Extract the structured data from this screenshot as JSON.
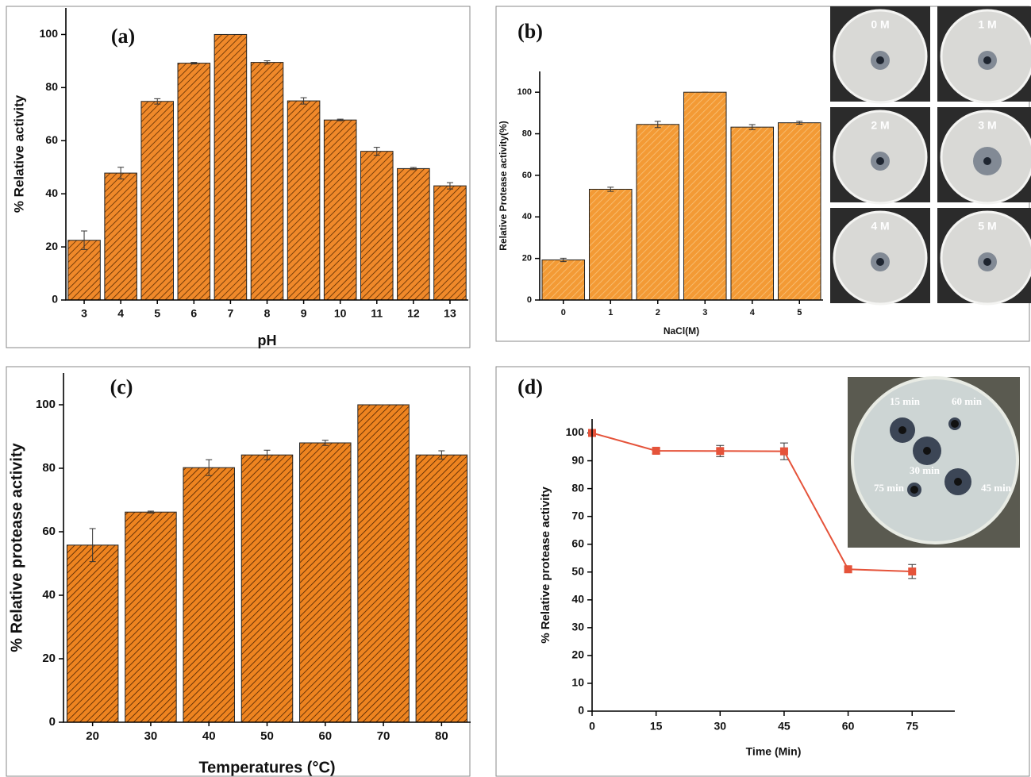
{
  "chart_data": [
    {
      "type": "bar",
      "annotation": "(a)",
      "x_label": "pH",
      "y_label": "% Relative activity",
      "categories": [
        "3",
        "4",
        "5",
        "6",
        "7",
        "8",
        "9",
        "10",
        "11",
        "12",
        "13"
      ],
      "values": [
        22.5,
        47.8,
        74.8,
        89.2,
        100,
        89.5,
        75,
        67.8,
        56,
        49.5,
        43
      ],
      "errors": [
        3.5,
        2.2,
        1,
        0.3,
        0,
        0.6,
        1.2,
        0.3,
        1.5,
        0.4,
        1.2
      ],
      "color": "#f0892a",
      "hatch_color": "#5a2a00",
      "ylim": [
        0,
        110
      ],
      "yticks": [
        0,
        20,
        40,
        60,
        80,
        100
      ]
    },
    {
      "type": "bar",
      "annotation": "(b)",
      "x_label": "NaCl(M)",
      "y_label": "Relative Protease activity(%)",
      "categories": [
        "0",
        "1",
        "2",
        "3",
        "4",
        "5"
      ],
      "values": [
        19.3,
        53.3,
        84.5,
        100,
        83.2,
        85.3
      ],
      "errors": [
        0.8,
        1,
        1.5,
        0,
        1.2,
        0.7
      ],
      "color": "#f39a35",
      "hatch_color": "#f9c27a",
      "ylim": [
        0,
        110
      ],
      "yticks": [
        0,
        20,
        40,
        60,
        80,
        100
      ],
      "inset_labels": [
        "0 M",
        "1 M",
        "2 M",
        "3 M",
        "4 M",
        "5 M"
      ]
    },
    {
      "type": "bar",
      "annotation": "(c)",
      "x_label": "Temperatures (°C)",
      "y_label": "% Relative protease activity",
      "categories": [
        "20",
        "30",
        "40",
        "50",
        "60",
        "70",
        "80"
      ],
      "values": [
        55.8,
        66.2,
        80.2,
        84.2,
        88,
        100,
        84.2
      ],
      "errors": [
        5.2,
        0.3,
        2.5,
        1.5,
        0.8,
        0,
        1.3
      ],
      "color": "#ee8420",
      "hatch_color": "#4a2000",
      "ylim": [
        0,
        110
      ],
      "yticks": [
        0,
        20,
        40,
        60,
        80,
        100
      ]
    },
    {
      "type": "line",
      "annotation": "(d)",
      "x_label": "Time (Min)",
      "y_label": "% Relative protease activity",
      "x": [
        0,
        15,
        30,
        45,
        60,
        75
      ],
      "values": [
        100,
        93.6,
        93.5,
        93.4,
        51,
        50.2
      ],
      "errors": [
        0,
        1,
        2,
        3,
        1,
        2.5
      ],
      "color": "#e5533a",
      "xlim": [
        0,
        85
      ],
      "xticks": [
        0,
        15,
        30,
        45,
        60,
        75
      ],
      "ylim": [
        0,
        105
      ],
      "yticks": [
        0,
        10,
        20,
        30,
        40,
        50,
        60,
        70,
        80,
        90,
        100
      ],
      "inset_labels": [
        "15 min",
        "60 min",
        "30 min",
        "75 min",
        "45 min"
      ]
    }
  ]
}
